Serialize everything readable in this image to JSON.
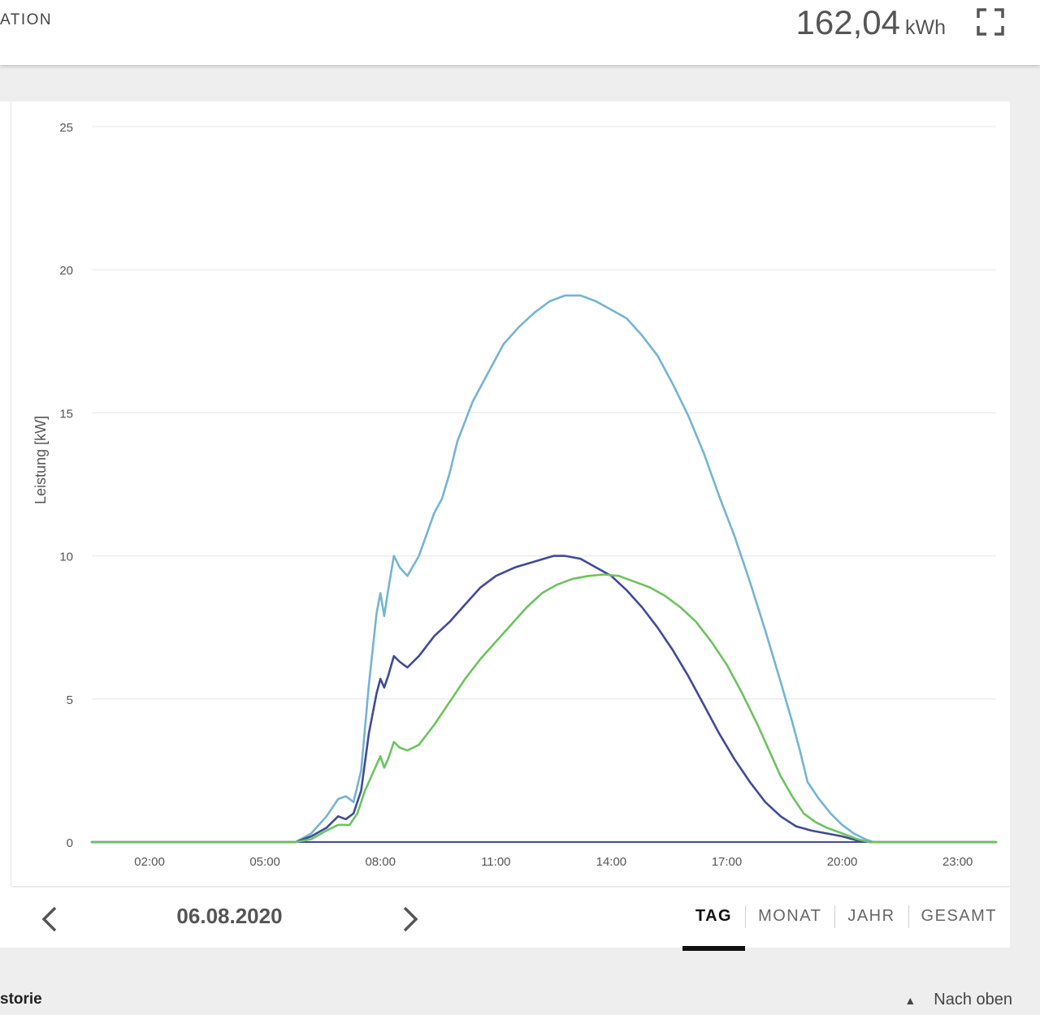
{
  "header": {
    "title": "ATION",
    "energy_value": "162,04",
    "energy_unit": "kWh"
  },
  "navigation": {
    "date": "06.08.2020",
    "tabs": [
      {
        "label": "TAG",
        "active": true
      },
      {
        "label": "MONAT",
        "active": false
      },
      {
        "label": "JAHR",
        "active": false
      },
      {
        "label": "GESAMT",
        "active": false
      }
    ]
  },
  "footer": {
    "left_label": "storie",
    "back_to_top": "Nach oben"
  },
  "chart_data": {
    "type": "line",
    "ylabel": "Leistung [kW]",
    "ylim": [
      0,
      25
    ],
    "yticks": [
      0,
      5,
      10,
      15,
      20,
      25
    ],
    "xlim": [
      0.5,
      24
    ],
    "xticks": [
      "02:00",
      "05:00",
      "08:00",
      "11:00",
      "14:00",
      "17:00",
      "20:00",
      "23:00"
    ],
    "xtick_hours": [
      2,
      5,
      8,
      11,
      14,
      17,
      20,
      23
    ],
    "grid": true,
    "series": [
      {
        "color": "#74b4d2",
        "points": [
          [
            0.5,
            0
          ],
          [
            5.8,
            0
          ],
          [
            6.2,
            0.3
          ],
          [
            6.6,
            0.9
          ],
          [
            6.9,
            1.5
          ],
          [
            7.1,
            1.6
          ],
          [
            7.3,
            1.4
          ],
          [
            7.5,
            2.5
          ],
          [
            7.7,
            5.5
          ],
          [
            7.9,
            8.0
          ],
          [
            8.0,
            8.7
          ],
          [
            8.1,
            7.9
          ],
          [
            8.2,
            8.8
          ],
          [
            8.35,
            10.0
          ],
          [
            8.5,
            9.6
          ],
          [
            8.7,
            9.3
          ],
          [
            9.0,
            10.0
          ],
          [
            9.4,
            11.5
          ],
          [
            9.6,
            12.0
          ],
          [
            9.8,
            12.9
          ],
          [
            10.0,
            14.0
          ],
          [
            10.4,
            15.4
          ],
          [
            10.8,
            16.4
          ],
          [
            11.2,
            17.4
          ],
          [
            11.6,
            18.0
          ],
          [
            12.0,
            18.5
          ],
          [
            12.4,
            18.9
          ],
          [
            12.8,
            19.1
          ],
          [
            13.2,
            19.1
          ],
          [
            13.6,
            18.9
          ],
          [
            14.0,
            18.6
          ],
          [
            14.4,
            18.3
          ],
          [
            14.8,
            17.7
          ],
          [
            15.2,
            17.0
          ],
          [
            15.6,
            16.0
          ],
          [
            16.0,
            14.9
          ],
          [
            16.4,
            13.6
          ],
          [
            16.8,
            12.1
          ],
          [
            17.2,
            10.7
          ],
          [
            17.6,
            9.1
          ],
          [
            18.0,
            7.4
          ],
          [
            18.4,
            5.6
          ],
          [
            18.7,
            4.2
          ],
          [
            18.9,
            3.2
          ],
          [
            19.1,
            2.1
          ],
          [
            19.4,
            1.5
          ],
          [
            19.7,
            1.0
          ],
          [
            20.0,
            0.6
          ],
          [
            20.3,
            0.3
          ],
          [
            20.6,
            0.1
          ],
          [
            20.8,
            0
          ],
          [
            24,
            0
          ]
        ]
      },
      {
        "color": "#3f4a97",
        "points": [
          [
            0.5,
            0
          ],
          [
            5.8,
            0
          ],
          [
            6.2,
            0.2
          ],
          [
            6.6,
            0.5
          ],
          [
            6.9,
            0.9
          ],
          [
            7.1,
            0.8
          ],
          [
            7.3,
            1.0
          ],
          [
            7.5,
            1.8
          ],
          [
            7.7,
            3.8
          ],
          [
            7.9,
            5.2
          ],
          [
            8.0,
            5.7
          ],
          [
            8.1,
            5.4
          ],
          [
            8.2,
            5.8
          ],
          [
            8.35,
            6.5
          ],
          [
            8.5,
            6.3
          ],
          [
            8.7,
            6.1
          ],
          [
            9.0,
            6.5
          ],
          [
            9.4,
            7.2
          ],
          [
            9.8,
            7.7
          ],
          [
            10.2,
            8.3
          ],
          [
            10.6,
            8.9
          ],
          [
            11.0,
            9.3
          ],
          [
            11.5,
            9.6
          ],
          [
            12.0,
            9.8
          ],
          [
            12.5,
            10.0
          ],
          [
            12.8,
            10.0
          ],
          [
            13.2,
            9.9
          ],
          [
            13.6,
            9.6
          ],
          [
            14.0,
            9.3
          ],
          [
            14.4,
            8.8
          ],
          [
            14.8,
            8.2
          ],
          [
            15.2,
            7.5
          ],
          [
            15.6,
            6.7
          ],
          [
            16.0,
            5.8
          ],
          [
            16.4,
            4.8
          ],
          [
            16.8,
            3.8
          ],
          [
            17.2,
            2.9
          ],
          [
            17.6,
            2.1
          ],
          [
            18.0,
            1.4
          ],
          [
            18.4,
            0.9
          ],
          [
            18.8,
            0.55
          ],
          [
            19.2,
            0.4
          ],
          [
            19.6,
            0.3
          ],
          [
            20.0,
            0.2
          ],
          [
            20.4,
            0.05
          ],
          [
            20.7,
            0
          ],
          [
            24,
            0
          ]
        ]
      },
      {
        "color": "#6cc35e",
        "points": [
          [
            0.5,
            0
          ],
          [
            5.8,
            0
          ],
          [
            6.2,
            0.1
          ],
          [
            6.6,
            0.4
          ],
          [
            6.9,
            0.6
          ],
          [
            7.2,
            0.6
          ],
          [
            7.4,
            1.0
          ],
          [
            7.6,
            1.8
          ],
          [
            7.8,
            2.4
          ],
          [
            8.0,
            3.0
          ],
          [
            8.1,
            2.6
          ],
          [
            8.2,
            2.9
          ],
          [
            8.35,
            3.5
          ],
          [
            8.5,
            3.3
          ],
          [
            8.7,
            3.2
          ],
          [
            9.0,
            3.4
          ],
          [
            9.4,
            4.1
          ],
          [
            9.8,
            4.9
          ],
          [
            10.2,
            5.7
          ],
          [
            10.6,
            6.4
          ],
          [
            11.0,
            7.0
          ],
          [
            11.4,
            7.6
          ],
          [
            11.8,
            8.2
          ],
          [
            12.2,
            8.7
          ],
          [
            12.6,
            9.0
          ],
          [
            13.0,
            9.2
          ],
          [
            13.4,
            9.3
          ],
          [
            13.8,
            9.35
          ],
          [
            14.2,
            9.3
          ],
          [
            14.6,
            9.1
          ],
          [
            15.0,
            8.9
          ],
          [
            15.4,
            8.6
          ],
          [
            15.8,
            8.2
          ],
          [
            16.2,
            7.7
          ],
          [
            16.6,
            7.0
          ],
          [
            17.0,
            6.2
          ],
          [
            17.4,
            5.2
          ],
          [
            17.8,
            4.1
          ],
          [
            18.1,
            3.2
          ],
          [
            18.4,
            2.3
          ],
          [
            18.7,
            1.6
          ],
          [
            19.0,
            1.0
          ],
          [
            19.3,
            0.7
          ],
          [
            19.6,
            0.5
          ],
          [
            20.0,
            0.3
          ],
          [
            20.4,
            0.1
          ],
          [
            20.7,
            0
          ],
          [
            24,
            0
          ]
        ]
      }
    ]
  }
}
